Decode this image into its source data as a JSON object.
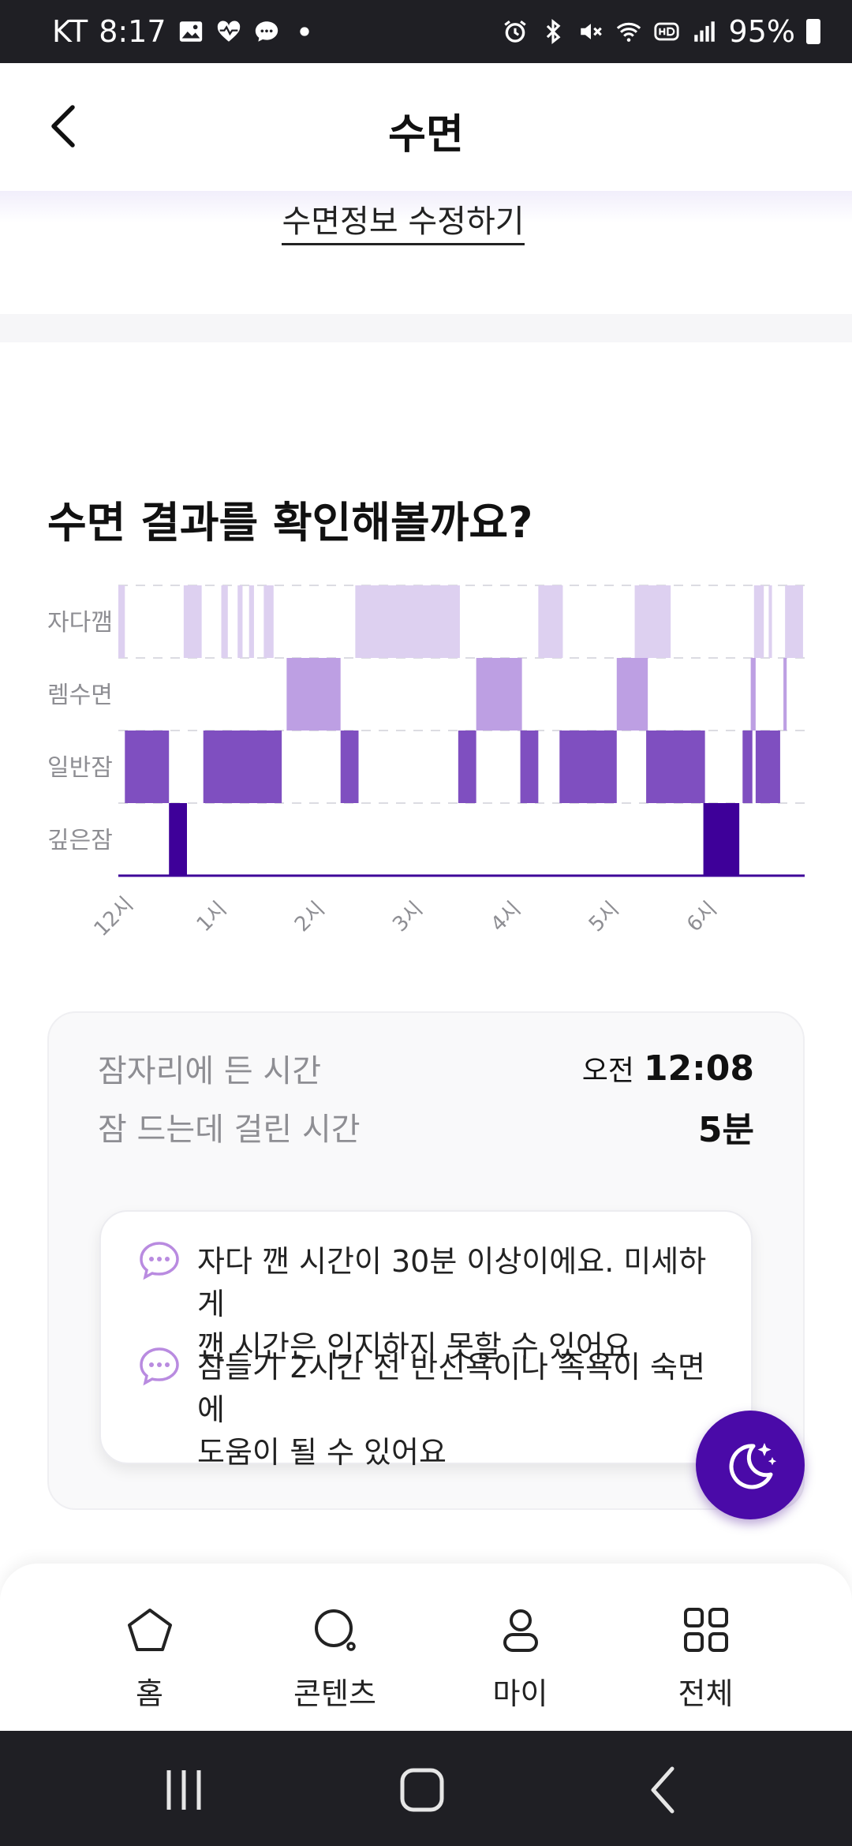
{
  "status_bar": {
    "carrier": "KT",
    "time": "8:17",
    "battery": "95%"
  },
  "header": {
    "title": "수면"
  },
  "edit_link": "수면정보 수정하기",
  "section": {
    "title": "수면 결과를 확인해볼까요?"
  },
  "chart_data": {
    "type": "bar",
    "categories": [
      "깊은잠",
      "일반잠",
      "렘수면",
      "자다깸"
    ],
    "x_ticks": [
      "12시",
      "1시",
      "2시",
      "3시",
      "4시",
      "5시",
      "6시"
    ],
    "x_range_minutes": [
      0,
      420
    ],
    "series": [
      {
        "level": "자다깸",
        "color": "#ddd0f0",
        "segments": [
          [
            0,
            4
          ],
          [
            40,
            51
          ],
          [
            63,
            67
          ],
          [
            73,
            76
          ],
          [
            80,
            83
          ],
          [
            89,
            95
          ],
          [
            145,
            209
          ],
          [
            257,
            272
          ],
          [
            316,
            338
          ],
          [
            389,
            395
          ],
          [
            398,
            400
          ],
          [
            408,
            419
          ]
        ]
      },
      {
        "level": "렘수면",
        "color": "#bd9fe3",
        "segments": [
          [
            103,
            136
          ],
          [
            219,
            247
          ],
          [
            305,
            324
          ],
          [
            387,
            390
          ],
          [
            407,
            409
          ]
        ]
      },
      {
        "level": "일반잠",
        "color": "#7f4fc0",
        "segments": [
          [
            4,
            31
          ],
          [
            52,
            100
          ],
          [
            136,
            147
          ],
          [
            208,
            219
          ],
          [
            246,
            257
          ],
          [
            270,
            305
          ],
          [
            323,
            359
          ],
          [
            382,
            388
          ],
          [
            390,
            405
          ]
        ]
      },
      {
        "level": "깊은잠",
        "color": "#3e0099",
        "segments": [
          [
            31,
            42
          ],
          [
            358,
            380
          ]
        ]
      }
    ]
  },
  "summary": {
    "bedtime_label": "잠자리에 든 시간",
    "bedtime_ampm": "오전",
    "bedtime_value": "12:08",
    "latency_label": "잠 드는데 걸린 시간",
    "latency_value": "5분"
  },
  "tips": [
    {
      "line1": "자다 깬 시간이 30분 이상이에요. 미세하게",
      "line2": "깬 시간은 인지하지 못할 수 있어요",
      "icon": "chat-bubble-icon"
    },
    {
      "line1": "잠들기 2시간 전 반신욕이나 족욕이 숙면에",
      "line2": "도움이 될 수 있어요",
      "icon": "chat-bubble-icon"
    }
  ],
  "bottom_nav": [
    {
      "label": "홈",
      "icon": "home-icon"
    },
    {
      "label": "콘텐츠",
      "icon": "search-icon"
    },
    {
      "label": "마이",
      "icon": "person-icon"
    },
    {
      "label": "전체",
      "icon": "grid-icon"
    }
  ],
  "colors": {
    "accent": "#4a0aa8",
    "deep": "#3e0099",
    "light": "#7f4fc0",
    "rem": "#bd9fe3",
    "awake": "#ddd0f0"
  }
}
